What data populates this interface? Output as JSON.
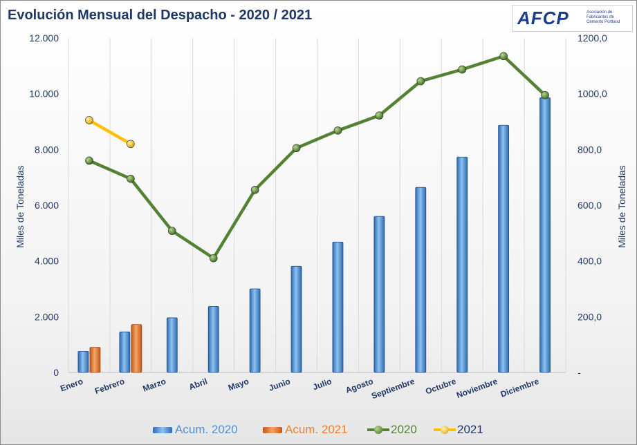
{
  "title": "Evolución Mensual del Despacho - 2020 / 2021",
  "logo": {
    "mark": "AFCP",
    "text": "Asociación de Fabricantes de Cemento Portland"
  },
  "colors": {
    "bar_2020": "#4f8fd4",
    "bar_2021": "#ed7d31",
    "line_2020": "#548235",
    "line_2021": "#ffc000",
    "text": "#1f3864",
    "grid": "#d9d9d9"
  },
  "chart_data": {
    "type": "bar+line",
    "title": "Evolución Mensual del Despacho - 2020 / 2021",
    "categories": [
      "Enero",
      "Febrero",
      "Marzo",
      "Abril",
      "Mayo",
      "Junio",
      "Julio",
      "Agosto",
      "Septiembre",
      "Octubre",
      "Noviembre",
      "Diciembre"
    ],
    "y_left": {
      "label": "Miles de Toneladas",
      "min": 0,
      "max": 12000,
      "ticks": [
        0,
        2000,
        4000,
        6000,
        8000,
        10000,
        12000
      ],
      "tick_labels": [
        "0",
        "2.000",
        "4.000",
        "6.000",
        "8.000",
        "10.000",
        "12.000"
      ]
    },
    "y_right": {
      "label": "Miles de Toneladas",
      "min": 0,
      "max": 1200,
      "ticks": [
        0,
        200,
        400,
        600,
        800,
        1000,
        1200
      ],
      "tick_labels": [
        "-",
        "200,0",
        "400,0",
        "600,0",
        "800,0",
        "1000,0",
        "1200,0"
      ]
    },
    "grid": "vertical",
    "legend_position": "bottom",
    "series": [
      {
        "name": "Acum. 2020",
        "type": "bar",
        "axis": "left",
        "values": [
          760,
          1455,
          1960,
          2370,
          3000,
          3810,
          4680,
          5600,
          6640,
          7730,
          8870,
          9860
        ]
      },
      {
        "name": "Acum. 2021",
        "type": "bar",
        "axis": "left",
        "values": [
          900,
          1720,
          null,
          null,
          null,
          null,
          null,
          null,
          null,
          null,
          null,
          null
        ]
      },
      {
        "name": "2020",
        "type": "line",
        "axis": "right",
        "values": [
          760,
          695,
          508,
          410,
          655,
          805,
          868,
          922,
          1045,
          1087,
          1135,
          995
        ]
      },
      {
        "name": "2021",
        "type": "line",
        "axis": "right",
        "values": [
          905,
          820,
          null,
          null,
          null,
          null,
          null,
          null,
          null,
          null,
          null,
          null
        ]
      }
    ]
  }
}
